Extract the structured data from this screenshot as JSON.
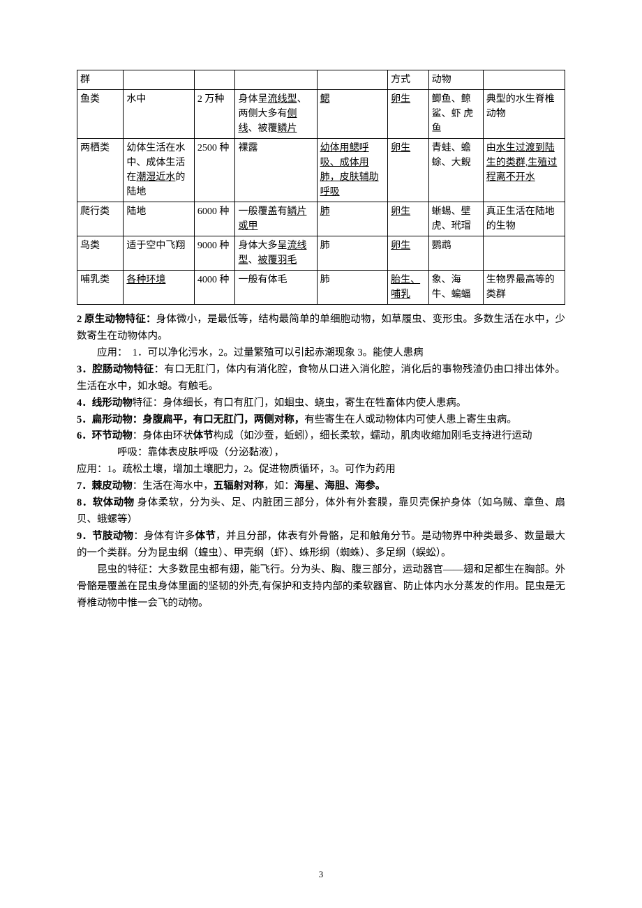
{
  "table": {
    "font_size": 14,
    "border_color": "#000000",
    "rows": [
      {
        "c0": {
          "plain": "群"
        },
        "c1": {
          "plain": ""
        },
        "c2": {
          "plain": ""
        },
        "c3": {
          "plain": ""
        },
        "c4": {
          "plain": ""
        },
        "c5": {
          "plain": "方式"
        },
        "c6": {
          "plain": "动物"
        },
        "c7": {
          "plain": ""
        }
      },
      {
        "c0": {
          "plain": "鱼类"
        },
        "c1": {
          "plain": "水中"
        },
        "c2": {
          "plain": "2 万种"
        },
        "c3": {
          "pre": "身体呈",
          "u1": "流线型",
          "mid": "、两侧大多有",
          "u2": "侧线",
          "mid2": "、被覆",
          "u3": "鳞片"
        },
        "c4": {
          "u": "鳃"
        },
        "c5": {
          "u": "卵生"
        },
        "c6": {
          "plain": "鲫鱼、鲸鲨、虾 虎鱼"
        },
        "c7": {
          "plain": "典型的水生脊椎动物"
        }
      },
      {
        "c0": {
          "plain": "两栖类"
        },
        "c1": {
          "pre": "幼体生活在水中、成体生活在",
          "u1": "潮湿近水",
          "post": "的陆地"
        },
        "c2": {
          "plain": "2500 种"
        },
        "c3": {
          "plain": "裸露"
        },
        "c4": {
          "u": "幼体用鳃呼吸、成体用肺，皮肤辅助呼吸"
        },
        "c5": {
          "u": "卵生"
        },
        "c6": {
          "plain": "青蛙、蟾蜍、大鲵"
        },
        "c7": {
          "pre": "由",
          "u1": "水生过渡到陆生的类群,生殖过程离不开水"
        }
      },
      {
        "c0": {
          "plain": "爬行类"
        },
        "c1": {
          "plain": "陆地"
        },
        "c2": {
          "plain": "6000 种"
        },
        "c3": {
          "pre": "一般覆盖有",
          "u1": "鳞片或甲"
        },
        "c4": {
          "u": "肺"
        },
        "c5": {
          "u": "卵生"
        },
        "c6": {
          "plain": "蜥蜴、壁虎、玳瑁"
        },
        "c7": {
          "plain": "真正生活在陆地的生物"
        }
      },
      {
        "c0": {
          "plain": "鸟类"
        },
        "c1": {
          "plain": "适于空中飞翔"
        },
        "c2": {
          "plain": "9000 种"
        },
        "c3": {
          "pre": "身体大多呈",
          "u1": "流线型",
          "mid": "、",
          "u2": "被覆羽毛"
        },
        "c4": {
          "plain": "肺"
        },
        "c5": {
          "u": "卵生"
        },
        "c6": {
          "plain": "鹦鹉"
        },
        "c7": {
          "plain": ""
        }
      },
      {
        "c0": {
          "plain": "哺乳类"
        },
        "c1": {
          "u": "各种环境"
        },
        "c2": {
          "plain": "4000 种"
        },
        "c3": {
          "plain": "一般有体毛"
        },
        "c4": {
          "plain": "肺"
        },
        "c5": {
          "u": "胎生、哺乳"
        },
        "c6": {
          "plain": "象、海牛、蝙蝠"
        },
        "c7": {
          "plain": "生物界最高等的类群"
        }
      }
    ]
  },
  "paragraphs": {
    "p1a_head": "2 原生动物特征：",
    "p1a_body": "身体微小，是最低等，结构最简单的单细胞动物，如草履虫、变形虫。多数生活在水中，少数寄生在动物体内。",
    "p1b": "应用：　1．可以净化污水，2。过量繁殖可以引起赤潮现象 3。能使人患病",
    "p2_head": "3．腔肠动物特征",
    "p2_body": "：有口无肛门，体内有消化腔，食物从口进入消化腔，消化后的事物残渣仍由口排出体外。生活在水中，如水螅。有触毛。",
    "p3_head": "4．线形动物",
    "p3_body": "特征：身体细长，有口有肛门，如蛔虫、蛲虫，寄生在牲畜体内使人患病。",
    "p4_head": "5．扁形动物：身腹扁平，有口无肛门，两侧对称，",
    "p4_body": "有些寄生在人或动物体内可使人患上寄生虫病。",
    "p5_head": "6．环节动物",
    "p5_mid": "：身体由环状",
    "p5_b2": "体节",
    "p5_body": "构成（如沙蚕，蚯蚓），细长柔软，蠕动，肌肉收缩加刚毛支持进行运动",
    "p5b": "呼吸：靠体表皮肤呼吸（分泌黏液），",
    "p5c": "应用：1。疏松土壤，增加土壤肥力，2。促进物质循环，3。可作为药用",
    "p6_head": "7．棘皮动物",
    "p6_mid": "：生活在海水中，",
    "p6_b2": "五辐射对称",
    "p6_mid2": "，如：",
    "p6_b3": "海星、海胆、海参。",
    "p7_head": "8．软体动物",
    "p7_body": " 身体柔软，分为头、足、内脏团三部分，体外有外套膜，靠贝壳保护身体（如乌贼、章鱼、扇贝、蛾螺等）",
    "p8_head": "9．节肢动物",
    "p8_mid": "：身体有许多",
    "p8_b2": "体节",
    "p8_body": "，并且分部，体表有外骨骼，足和触角分节。是动物界中种类最多、数量最大的一个类群。分为昆虫纲（蝗虫）、甲壳纲（虾）、蛛形纲（蜘蛛）、多足纲（蜈蚣）。",
    "p9": "昆虫的特征：大多数昆虫都有翅，能飞行。分为头、胸、腹三部分，运动器官——翅和足都生在胸部。外骨骼是覆盖在昆虫身体里面的坚韧的外壳,有保护和支持内部的柔软器官、防止体内水分蒸发的作用。昆虫是无脊椎动物中惟一会飞的动物。"
  },
  "page_number": "3"
}
